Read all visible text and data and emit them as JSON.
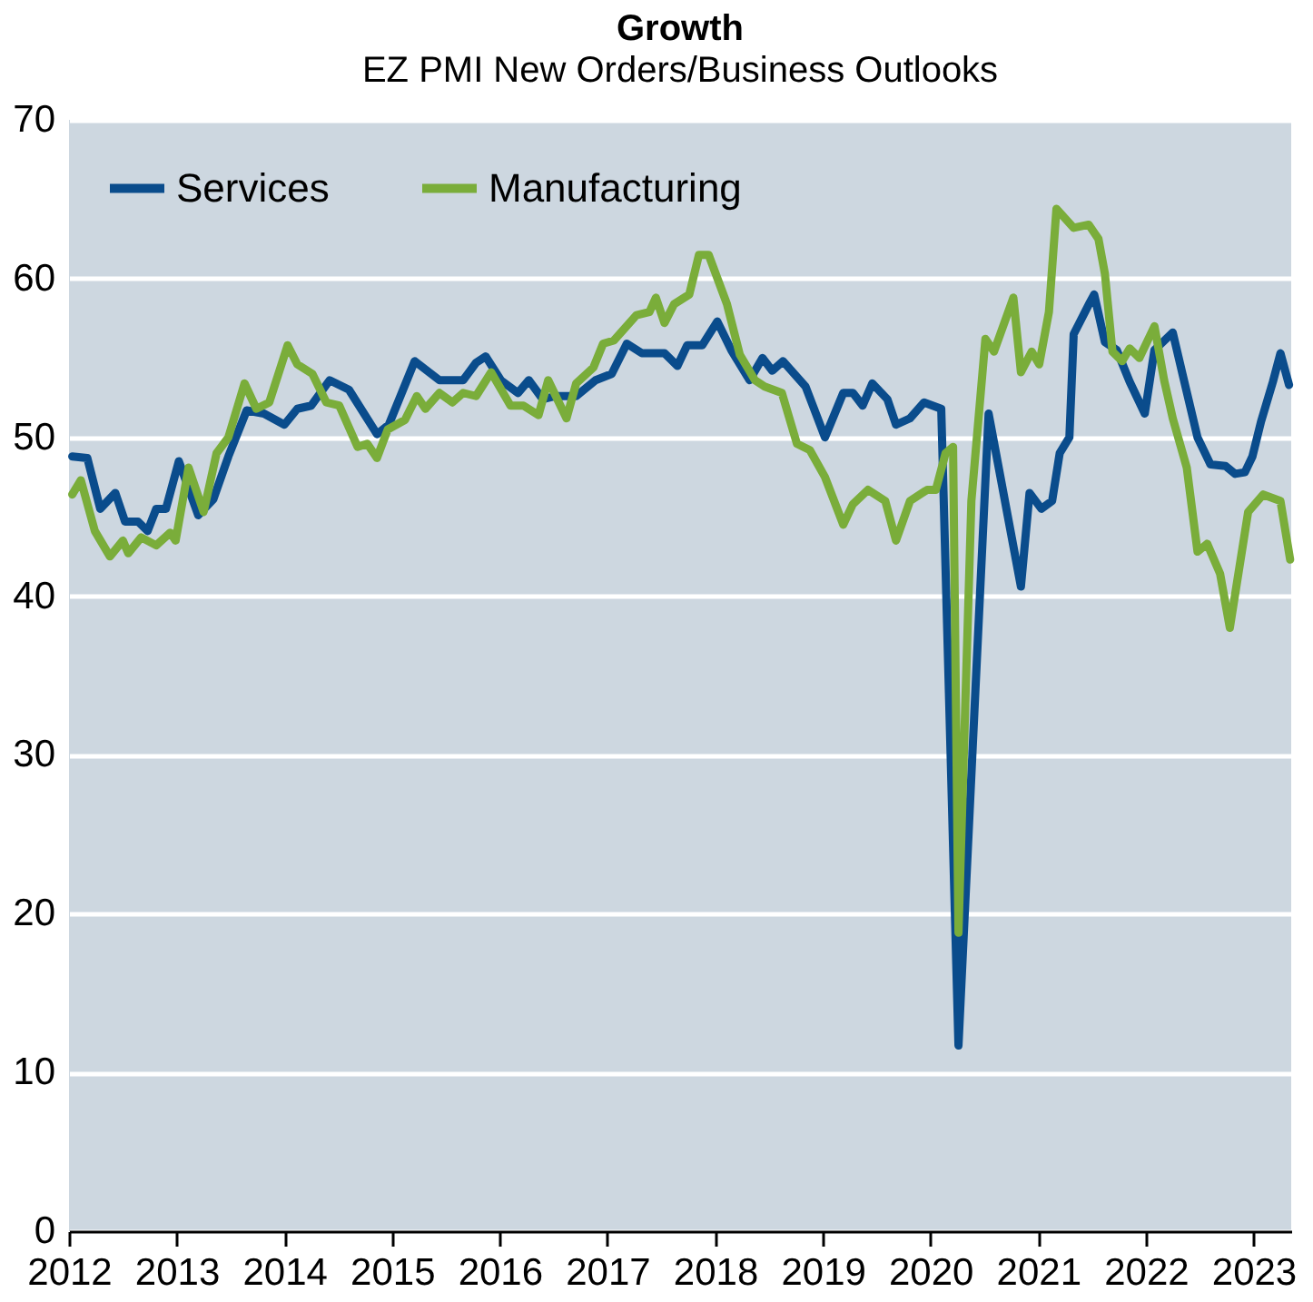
{
  "chart_data": {
    "type": "line",
    "title": "Growth",
    "subtitle": "EZ PMI New Orders/Business Outlooks",
    "xlim": [
      2012,
      2023.35
    ],
    "xticks": [
      2012,
      2013,
      2014,
      2015,
      2016,
      2017,
      2018,
      2019,
      2020,
      2021,
      2022,
      2023
    ],
    "ylim": [
      0,
      70
    ],
    "yticks": [
      0,
      10,
      20,
      30,
      40,
      50,
      60,
      70
    ],
    "grid": "y",
    "legend": "top left",
    "series": [
      {
        "name": "Services",
        "color": "#0a4c8c",
        "x": [
          2012.03,
          2012.17,
          2012.29,
          2012.43,
          2012.52,
          2012.64,
          2012.73,
          2012.81,
          2012.9,
          2013.02,
          2013.2,
          2013.34,
          2013.48,
          2013.65,
          2013.81,
          2014.0,
          2014.12,
          2014.25,
          2014.42,
          2014.6,
          2014.86,
          2014.97,
          2015.21,
          2015.44,
          2015.66,
          2015.78,
          2015.87,
          2016.01,
          2016.17,
          2016.27,
          2016.4,
          2016.52,
          2016.71,
          2016.89,
          2017.04,
          2017.18,
          2017.32,
          2017.53,
          2017.65,
          2017.74,
          2017.88,
          2018.02,
          2018.15,
          2018.32,
          2018.44,
          2018.53,
          2018.63,
          2018.84,
          2019.02,
          2019.19,
          2019.28,
          2019.37,
          2019.46,
          2019.6,
          2019.68,
          2019.81,
          2019.94,
          2020.1,
          2020.26,
          2020.54,
          2020.84,
          2020.92,
          2021.03,
          2021.13,
          2021.2,
          2021.29,
          2021.33,
          2021.48,
          2021.52,
          2021.62,
          2021.73,
          2021.85,
          2021.99,
          2022.08,
          2022.25,
          2022.34,
          2022.48,
          2022.6,
          2022.74,
          2022.83,
          2022.92,
          2022.99,
          2023.07,
          2023.18,
          2023.25,
          2023.33
        ],
        "values": [
          48.8,
          48.7,
          45.5,
          46.5,
          44.7,
          44.7,
          44.1,
          45.5,
          45.5,
          48.5,
          45.1,
          46.1,
          48.8,
          51.7,
          51.5,
          50.8,
          51.8,
          52.0,
          53.6,
          53.0,
          50.2,
          50.8,
          54.8,
          53.6,
          53.6,
          54.7,
          55.1,
          53.6,
          52.8,
          53.6,
          52.4,
          52.6,
          52.6,
          53.6,
          54.0,
          55.9,
          55.3,
          55.3,
          54.5,
          55.8,
          55.8,
          57.3,
          55.5,
          53.6,
          55.0,
          54.2,
          54.8,
          53.2,
          50.0,
          52.8,
          52.8,
          52.0,
          53.4,
          52.4,
          50.8,
          51.2,
          52.2,
          51.8,
          11.7,
          51.5,
          40.6,
          46.5,
          45.5,
          46.0,
          49.0,
          50.0,
          56.5,
          58.5,
          59.0,
          56.0,
          55.5,
          53.5,
          51.5,
          55.5,
          56.6,
          54.0,
          50.0,
          48.3,
          48.2,
          47.7,
          47.8,
          48.8,
          51.0,
          53.5,
          55.3,
          53.3
        ]
      },
      {
        "name": "Manufacturing",
        "color": "#7aad3a",
        "x": [
          2012.03,
          2012.11,
          2012.24,
          2012.38,
          2012.5,
          2012.55,
          2012.67,
          2012.81,
          2012.94,
          2012.99,
          2013.11,
          2013.25,
          2013.37,
          2013.48,
          2013.63,
          2013.74,
          2013.86,
          2014.03,
          2014.12,
          2014.26,
          2014.39,
          2014.51,
          2014.68,
          2014.77,
          2014.86,
          2014.96,
          2015.12,
          2015.23,
          2015.31,
          2015.44,
          2015.56,
          2015.66,
          2015.78,
          2015.92,
          2016.1,
          2016.22,
          2016.36,
          2016.45,
          2016.62,
          2016.71,
          2016.87,
          2016.96,
          2017.06,
          2017.27,
          2017.39,
          2017.45,
          2017.53,
          2017.62,
          2017.76,
          2017.85,
          2017.94,
          2018.11,
          2018.23,
          2018.37,
          2018.46,
          2018.62,
          2018.76,
          2018.88,
          2019.02,
          2019.19,
          2019.28,
          2019.42,
          2019.58,
          2019.68,
          2019.81,
          2019.97,
          2020.05,
          2020.14,
          2020.21,
          2020.26,
          2020.38,
          2020.51,
          2020.59,
          2020.77,
          2020.84,
          2020.94,
          2021.01,
          2021.1,
          2021.17,
          2021.33,
          2021.47,
          2021.56,
          2021.62,
          2021.69,
          2021.78,
          2021.85,
          2021.94,
          2022.08,
          2022.17,
          2022.25,
          2022.38,
          2022.48,
          2022.57,
          2022.69,
          2022.78,
          2022.95,
          2023.09,
          2023.25,
          2023.34
        ],
        "values": [
          46.4,
          47.3,
          44.1,
          42.5,
          43.5,
          42.7,
          43.7,
          43.2,
          44.0,
          43.5,
          48.1,
          45.3,
          49.0,
          50.0,
          53.4,
          51.8,
          52.2,
          55.8,
          54.6,
          54.0,
          52.2,
          52.0,
          49.4,
          49.6,
          48.7,
          50.5,
          51.1,
          52.6,
          51.8,
          52.8,
          52.2,
          52.8,
          52.6,
          54.1,
          52.0,
          52.0,
          51.4,
          53.6,
          51.2,
          53.4,
          54.4,
          55.9,
          56.1,
          57.7,
          57.9,
          58.8,
          57.2,
          58.4,
          59.0,
          61.5,
          61.5,
          58.4,
          55.2,
          53.6,
          53.2,
          52.8,
          49.6,
          49.2,
          47.5,
          44.5,
          45.8,
          46.7,
          46.0,
          43.5,
          46.0,
          46.7,
          46.7,
          49.0,
          49.4,
          18.8,
          46.0,
          56.2,
          55.4,
          58.8,
          54.1,
          55.4,
          54.6,
          57.9,
          64.4,
          63.2,
          63.4,
          62.5,
          60.3,
          55.4,
          54.8,
          55.6,
          55.0,
          57.0,
          53.6,
          51.2,
          48.1,
          42.8,
          43.3,
          41.4,
          38.0,
          45.3,
          46.4,
          46.0,
          42.3
        ]
      }
    ]
  }
}
